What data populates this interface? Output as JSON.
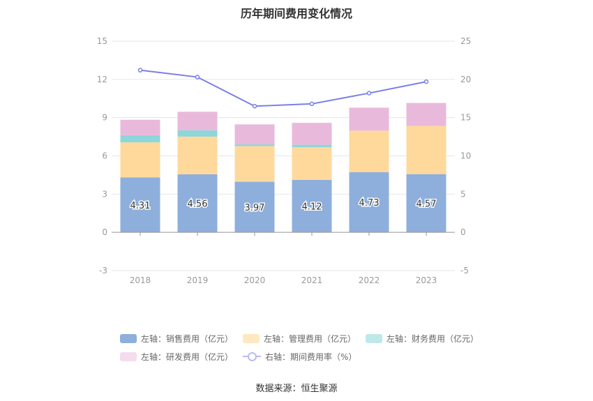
{
  "chart_data": {
    "type": "bar",
    "title": "历年期间费用变化情况",
    "categories": [
      "2018",
      "2019",
      "2020",
      "2021",
      "2022",
      "2023"
    ],
    "series": [
      {
        "name": "左轴：销售费用（亿元）",
        "axis": "left",
        "type": "bar",
        "stack": "cost",
        "color": "#8eafdc",
        "values": [
          4.31,
          4.56,
          3.97,
          4.12,
          4.73,
          4.57
        ]
      },
      {
        "name": "左轴：管理费用（亿元）",
        "axis": "left",
        "type": "bar",
        "stack": "cost",
        "color": "#ffd99c",
        "values": [
          2.75,
          2.95,
          2.8,
          2.55,
          3.25,
          3.78
        ]
      },
      {
        "name": "左轴：财务费用（亿元）",
        "axis": "left",
        "type": "bar",
        "stack": "cost",
        "color": "#8dd6d9",
        "values": [
          0.55,
          0.5,
          0.13,
          0.2,
          0.0,
          0.0
        ]
      },
      {
        "name": "左轴：研发费用（亿元）",
        "axis": "left",
        "type": "bar",
        "stack": "cost",
        "color": "#e9b9db",
        "values": [
          1.22,
          1.45,
          1.57,
          1.72,
          1.8,
          1.8
        ]
      },
      {
        "name": "右轴：期间费用率（%）",
        "axis": "right",
        "type": "line",
        "color": "#7b7fe8",
        "values": [
          21.2,
          20.3,
          16.5,
          16.8,
          18.2,
          19.7
        ]
      }
    ],
    "data_labels": [
      "4.31",
      "4.56",
      "3.97",
      "4.12",
      "4.73",
      "4.57"
    ],
    "left_axis": {
      "ylim": [
        -3,
        15
      ],
      "ticks": [
        "-3",
        "0",
        "3",
        "6",
        "9",
        "12",
        "15"
      ]
    },
    "right_axis": {
      "ylim": [
        -5,
        25
      ],
      "ticks": [
        "-5",
        "0",
        "5",
        "10",
        "15",
        "20",
        "25"
      ]
    },
    "grid": true,
    "legend_position": "bottom"
  },
  "legend": {
    "row1": [
      "左轴：销售费用（亿元）",
      "左轴：管理费用（亿元）",
      "左轴：财务费用（亿元）"
    ],
    "row2": [
      "左轴：研发费用（亿元）",
      "右轴：期间费用率（%）"
    ]
  },
  "source": "数据来源：恒生聚源"
}
